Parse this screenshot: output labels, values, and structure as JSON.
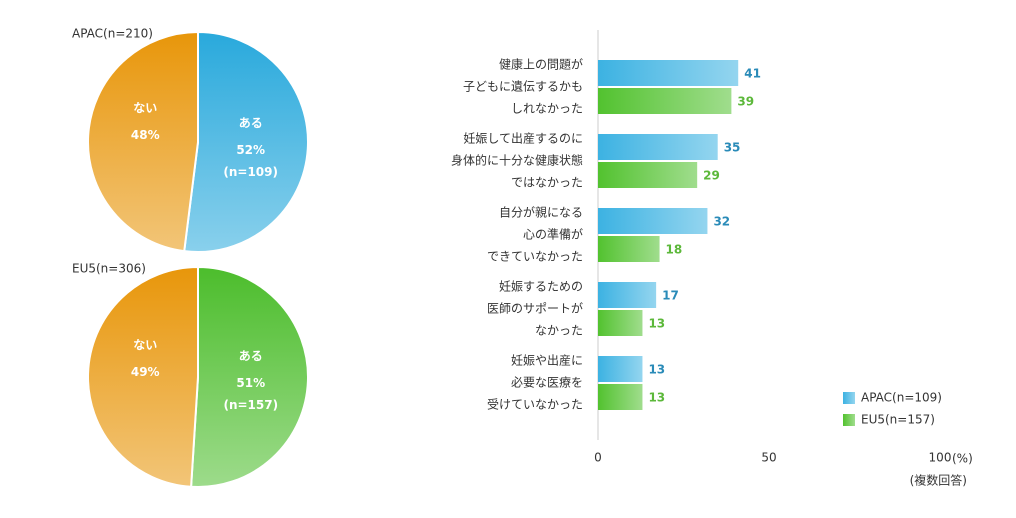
{
  "chart_data": [
    {
      "type": "pie",
      "title": "APAC(n=210)",
      "categories": [
        "ある",
        "ない"
      ],
      "values": [
        52,
        48
      ],
      "value_labels": [
        "52%",
        "48%"
      ],
      "sample_labels": [
        "(n=109)",
        null
      ],
      "colors": [
        "#29a9dc",
        "#e8960a"
      ]
    },
    {
      "type": "pie",
      "title": "EU5(n=306)",
      "categories": [
        "ある",
        "ない"
      ],
      "values": [
        51,
        49
      ],
      "value_labels": [
        "51%",
        "49%"
      ],
      "sample_labels": [
        "(n=157)",
        null
      ],
      "colors": [
        "#4cbd2c",
        "#e8960a"
      ]
    },
    {
      "type": "hbar",
      "categories": [
        [
          "健康上の問題が",
          "子どもに遺伝するかも",
          "しれなかった"
        ],
        [
          "妊娠して出産するのに",
          "身体的に十分な健康状態",
          "ではなかった"
        ],
        [
          "自分が親になる",
          "心の準備が",
          "できていなかった"
        ],
        [
          "妊娠するための",
          "医師のサポートが",
          "なかった"
        ],
        [
          "妊娠や出産に",
          "必要な医療を",
          "受けていなかった"
        ]
      ],
      "series": [
        {
          "name": "APAC(n=109)",
          "color": "#3cb2e2",
          "label_color": "#2a8bb8",
          "values": [
            41,
            35,
            32,
            17,
            13
          ]
        },
        {
          "name": "EU5(n=157)",
          "color": "#52c22f",
          "label_color": "#5cb83a",
          "values": [
            39,
            29,
            18,
            13,
            13
          ]
        }
      ],
      "xlim": [
        0,
        100
      ],
      "xticks": [
        0,
        50,
        100
      ],
      "unit": "(%)",
      "note": "(複数回答)",
      "grid": false,
      "legend": "lower right"
    }
  ]
}
